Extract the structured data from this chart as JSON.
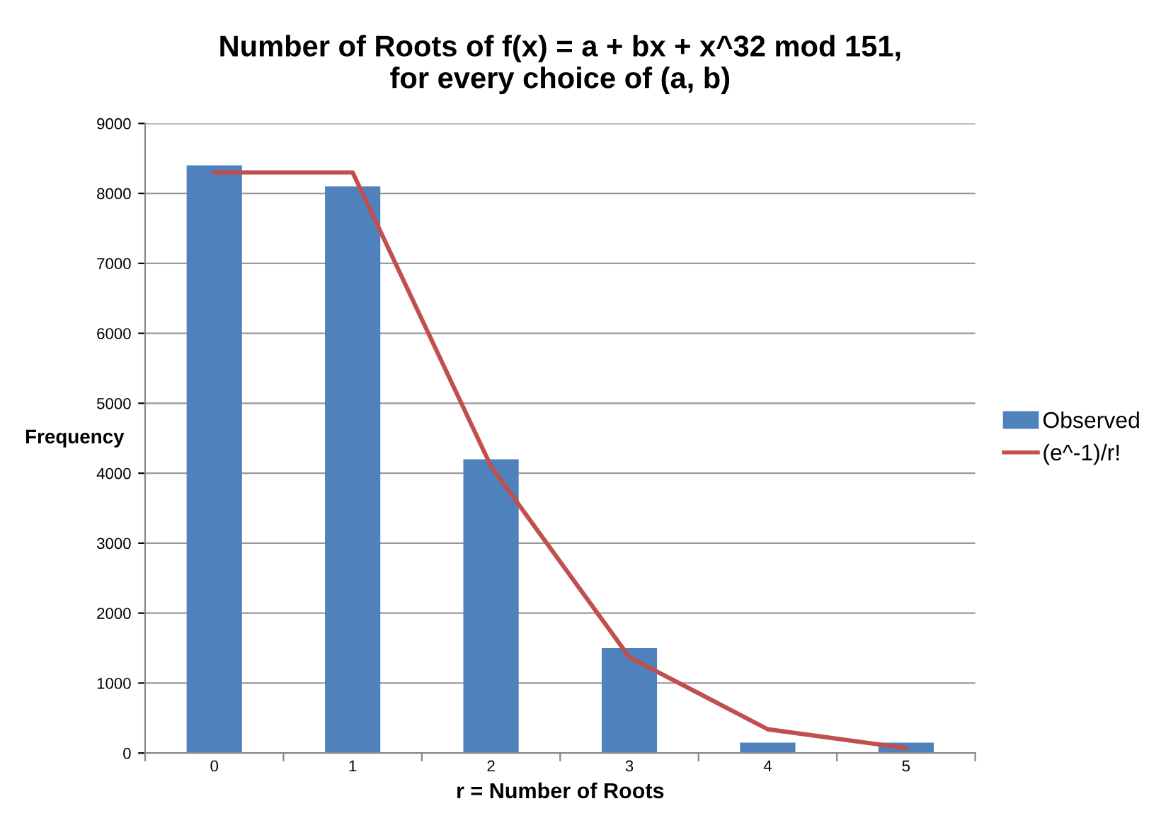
{
  "chart_data": {
    "type": "bar",
    "title": "Number of Roots of f(x) = a + bx + x^32 mod 151,\nfor every choice of (a, b)",
    "xlabel": "r = Number of Roots",
    "ylabel": "Frequency",
    "categories": [
      "0",
      "1",
      "2",
      "3",
      "4",
      "5"
    ],
    "series": [
      {
        "name": "Observed",
        "color": "#4f81bd",
        "values": [
          8400,
          8100,
          4200,
          1500,
          150,
          150
        ]
      },
      {
        "name": "(e^-1)/r!",
        "color": "#c0504d",
        "type": "line",
        "values": [
          8300,
          8300,
          4100,
          1370,
          340,
          70
        ]
      }
    ],
    "ylim": [
      0,
      9000
    ],
    "yticks": [
      0,
      1000,
      2000,
      3000,
      4000,
      5000,
      6000,
      7000,
      8000,
      9000
    ],
    "grid": "y",
    "legend": "right",
    "marker": "none"
  }
}
